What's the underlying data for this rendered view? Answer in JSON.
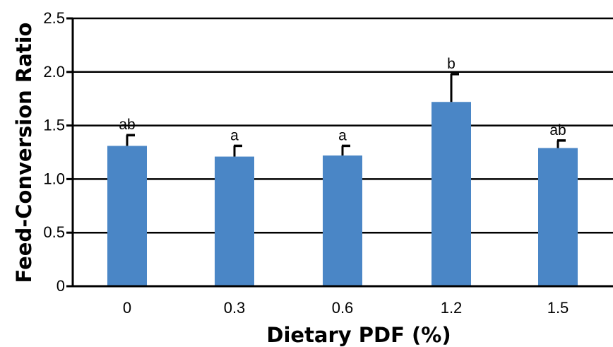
{
  "chart_data": {
    "type": "bar",
    "title": "",
    "xlabel": "Dietary PDF (%)",
    "ylabel": "Feed-Conversion Ratio",
    "categories": [
      "0",
      "0.3",
      "0.6",
      "1.2",
      "1.5"
    ],
    "values": [
      1.31,
      1.21,
      1.22,
      1.72,
      1.29
    ],
    "errors": [
      0.1,
      0.1,
      0.09,
      0.26,
      0.07
    ],
    "significance": [
      "ab",
      "a",
      "a",
      "b",
      "ab"
    ],
    "ylim": [
      0,
      2.5
    ],
    "yticks": [
      0,
      0.5,
      1.0,
      1.5,
      2.0,
      2.5
    ],
    "ytick_labels": [
      "0",
      "0.5",
      "1.0",
      "1.5",
      "2.0",
      "2.5"
    ],
    "grid": true,
    "legend": "none",
    "bar_color": "#4A86C6"
  }
}
